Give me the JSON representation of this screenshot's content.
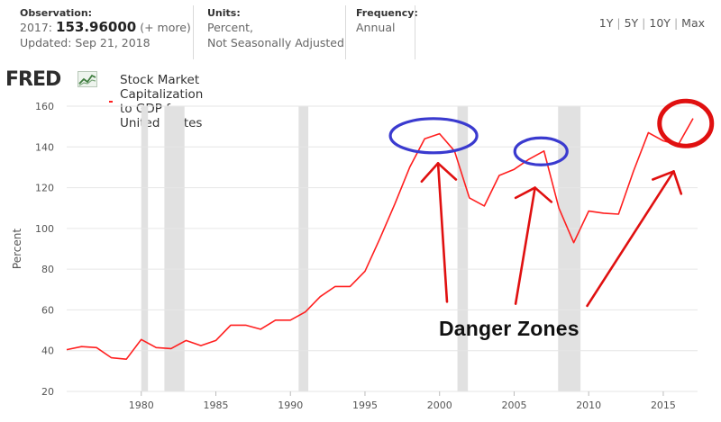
{
  "header": {
    "observation_label": "Observation:",
    "observation_year": "2017:",
    "observation_value": "153.96000",
    "observation_more": "(+ more)",
    "updated": "Updated: Sep 21, 2018",
    "units_label": "Units:",
    "units_line1": "Percent,",
    "units_line2": "Not Seasonally Adjusted",
    "frequency_label": "Frequency:",
    "frequency_value": "Annual",
    "ranges": [
      "1Y",
      "5Y",
      "10Y",
      "Max"
    ]
  },
  "brand": {
    "logo": "FRED",
    "logo_icon": "chart-line-icon"
  },
  "colors": {
    "series": "#ff1f1f",
    "recession": "#e1e1e1",
    "annotation_ellipse": "#3a3acf",
    "annotation_circle": "#e01010",
    "annotation_arrow": "#e01010"
  },
  "annotation": {
    "text": "Danger Zones"
  },
  "chart_data": {
    "type": "line",
    "title": "",
    "xlabel": "",
    "ylabel": "Percent",
    "xlim": [
      1975,
      2017.3
    ],
    "ylim": [
      20,
      160
    ],
    "yticks": [
      20,
      40,
      60,
      80,
      100,
      120,
      140,
      160
    ],
    "xticks": [
      1980,
      1985,
      1990,
      1995,
      2000,
      2005,
      2010,
      2015
    ],
    "grid": true,
    "legend": "top-left",
    "series": [
      {
        "name": "Stock Market Capitalization to GDP for United States",
        "x": [
          1975,
          1976,
          1977,
          1978,
          1979,
          1980,
          1981,
          1982,
          1983,
          1984,
          1985,
          1986,
          1987,
          1988,
          1989,
          1990,
          1991,
          1992,
          1993,
          1994,
          1995,
          1996,
          1997,
          1998,
          1999,
          2000,
          2001,
          2002,
          2003,
          2004,
          2005,
          2006,
          2007,
          2008,
          2009,
          2010,
          2011,
          2012,
          2013,
          2014,
          2015,
          2016,
          2017
        ],
        "values": [
          40.5,
          42,
          41.5,
          36.5,
          35.8,
          45.5,
          41.5,
          41,
          45,
          42.5,
          45,
          52.5,
          52.5,
          50.5,
          55,
          55,
          59,
          66.5,
          71.5,
          71.5,
          79,
          95,
          112,
          130,
          144,
          146.5,
          138,
          115,
          111,
          126,
          129,
          134,
          138,
          110,
          93,
          108.5,
          107.5,
          107,
          128,
          147,
          143,
          141,
          154
        ]
      }
    ],
    "recessions": [
      [
        1980.0,
        1980.45
      ],
      [
        1981.55,
        1982.9
      ],
      [
        1990.55,
        1991.2
      ],
      [
        2001.2,
        2001.9
      ],
      [
        2007.95,
        2009.45
      ]
    ]
  }
}
